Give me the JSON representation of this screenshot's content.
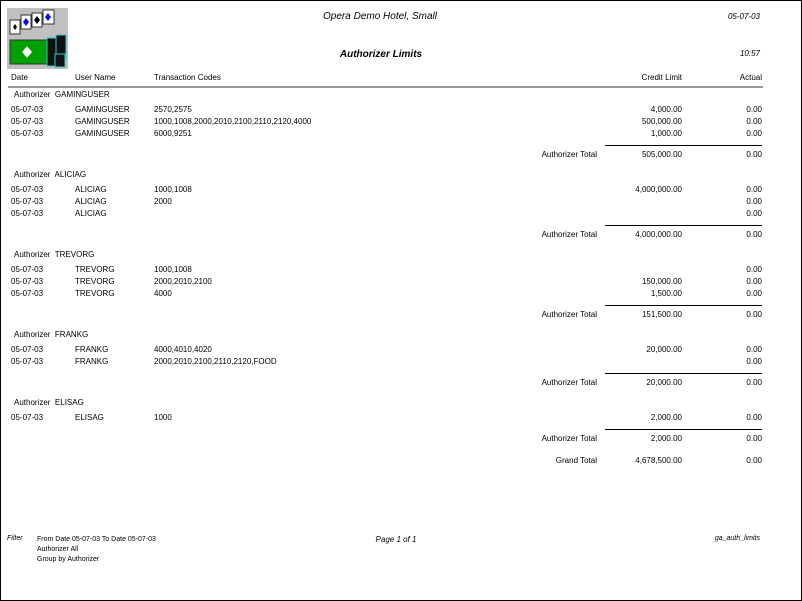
{
  "header": {
    "hotel": "Opera Demo Hotel, Small",
    "title": "Authorizer Limits",
    "date": "05-07-03",
    "time": "10:57"
  },
  "columns": {
    "date": "Date",
    "user": "User Name",
    "codes": "Transaction Codes",
    "limit": "Credit Limit",
    "actual": "Actual"
  },
  "total_label": "Authorizer Total",
  "groups": [
    {
      "label": "Authorizer",
      "name": "GAMINGUSER",
      "rows": [
        {
          "date": "05-07-03",
          "user": "GAMINGUSER",
          "codes": "2570,2575",
          "limit": "4,000.00",
          "actual": "0.00"
        },
        {
          "date": "05-07-03",
          "user": "GAMINGUSER",
          "codes": "1000,1008,2000,2010,2100,2110,2120,4000",
          "limit": "500,000.00",
          "actual": "0.00"
        },
        {
          "date": "05-07-03",
          "user": "GAMINGUSER",
          "codes": "6000,9251",
          "limit": "1,000.00",
          "actual": "0.00"
        }
      ],
      "total_limit": "505,000.00",
      "total_actual": "0.00"
    },
    {
      "label": "Authorizer",
      "name": "ALICIAG",
      "rows": [
        {
          "date": "05-07-03",
          "user": "ALICIAG",
          "codes": "1000,1008",
          "limit": "4,000,000.00",
          "actual": "0.00"
        },
        {
          "date": "05-07-03",
          "user": "ALICIAG",
          "codes": "2000",
          "limit": "",
          "actual": "0.00"
        },
        {
          "date": "05-07-03",
          "user": "ALICIAG",
          "codes": "",
          "limit": "",
          "actual": "0.00"
        }
      ],
      "total_limit": "4,000,000.00",
      "total_actual": "0.00"
    },
    {
      "label": "Authorizer",
      "name": "TREVORG",
      "rows": [
        {
          "date": "05-07-03",
          "user": "TREVORG",
          "codes": "1000,1008",
          "limit": "",
          "actual": "0.00"
        },
        {
          "date": "05-07-03",
          "user": "TREVORG",
          "codes": "2000,2010,2100",
          "limit": "150,000.00",
          "actual": "0.00"
        },
        {
          "date": "05-07-03",
          "user": "TREVORG",
          "codes": "4000",
          "limit": "1,500.00",
          "actual": "0.00"
        }
      ],
      "total_limit": "151,500.00",
      "total_actual": "0.00"
    },
    {
      "label": "Authorizer",
      "name": "FRANKG",
      "rows": [
        {
          "date": "05-07-03",
          "user": "FRANKG",
          "codes": "4000,4010,4020",
          "limit": "20,000.00",
          "actual": "0.00"
        },
        {
          "date": "05-07-03",
          "user": "FRANKG",
          "codes": "2000,2010,2100,2110,2120,FOOD",
          "limit": "",
          "actual": "0.00"
        }
      ],
      "total_limit": "20,000.00",
      "total_actual": "0.00"
    },
    {
      "label": "Authorizer",
      "name": "ELISAG",
      "rows": [
        {
          "date": "05-07-03",
          "user": "ELISAG",
          "codes": "1000",
          "limit": "2,000.00",
          "actual": "0.00"
        }
      ],
      "total_limit": "2,000.00",
      "total_actual": "0.00"
    }
  ],
  "grand": {
    "label": "Grand Total",
    "limit": "4,678,500.00",
    "actual": "0.00"
  },
  "footer": {
    "filter_label": "Filter",
    "filter_lines": [
      "From Date 05-07-03   To Date 05-07-03",
      "Authorizer All",
      "Group by Authorizer"
    ],
    "page": "Page 1 of 1",
    "report": "ga_auth_limits"
  }
}
